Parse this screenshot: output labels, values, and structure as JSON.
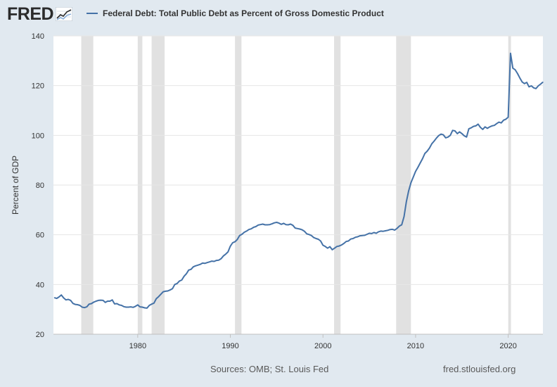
{
  "header": {
    "logo_text": "FRED",
    "logo_icon": "trend-line-chart-icon",
    "legend_label": "Federal Debt: Total Public Debt as Percent of Gross Domestic Product"
  },
  "footer": {
    "source": "Sources: OMB; St. Louis Fed",
    "site": "fred.stlouisfed.org"
  },
  "colors": {
    "line": "#4572a7",
    "recession": "#e1e1e1",
    "plot_bg": "#ffffff",
    "page_bg": "#e1e9f0",
    "grid": "#e6e6e6"
  },
  "chart_data": {
    "type": "line",
    "title": "",
    "xlabel": "",
    "ylabel": "Percent of GDP",
    "xlim": [
      1970.9,
      2023.75
    ],
    "ylim": [
      20,
      140
    ],
    "yticks": [
      20,
      40,
      60,
      80,
      100,
      120,
      140
    ],
    "xticks": [
      1980,
      1990,
      2000,
      2010,
      2020
    ],
    "grid": true,
    "legend_position": "top",
    "recessions": [
      [
        1973.9,
        1975.2
      ],
      [
        1980.0,
        1980.5
      ],
      [
        1981.5,
        1982.9
      ],
      [
        1990.5,
        1991.2
      ],
      [
        2001.2,
        2001.9
      ],
      [
        2007.9,
        2009.5
      ],
      [
        2020.0,
        2020.3
      ]
    ],
    "series": [
      {
        "name": "Federal Debt: Total Public Debt as Percent of Gross Domestic Product",
        "x": [
          1971.0,
          1971.25,
          1971.5,
          1971.75,
          1972.0,
          1972.25,
          1972.5,
          1972.75,
          1973.0,
          1973.25,
          1973.5,
          1973.75,
          1974.0,
          1974.25,
          1974.5,
          1974.75,
          1975.0,
          1975.25,
          1975.5,
          1975.75,
          1976.0,
          1976.25,
          1976.5,
          1976.75,
          1977.0,
          1977.25,
          1977.5,
          1977.75,
          1978.0,
          1978.25,
          1978.5,
          1978.75,
          1979.0,
          1979.25,
          1979.5,
          1979.75,
          1980.0,
          1980.25,
          1980.5,
          1980.75,
          1981.0,
          1981.25,
          1981.5,
          1981.75,
          1982.0,
          1982.25,
          1982.5,
          1982.75,
          1983.0,
          1983.25,
          1983.5,
          1983.75,
          1984.0,
          1984.25,
          1984.5,
          1984.75,
          1985.0,
          1985.25,
          1985.5,
          1985.75,
          1986.0,
          1986.25,
          1986.5,
          1986.75,
          1987.0,
          1987.25,
          1987.5,
          1987.75,
          1988.0,
          1988.25,
          1988.5,
          1988.75,
          1989.0,
          1989.25,
          1989.5,
          1989.75,
          1990.0,
          1990.25,
          1990.5,
          1990.75,
          1991.0,
          1991.25,
          1991.5,
          1991.75,
          1992.0,
          1992.25,
          1992.5,
          1992.75,
          1993.0,
          1993.25,
          1993.5,
          1993.75,
          1994.0,
          1994.25,
          1994.5,
          1994.75,
          1995.0,
          1995.25,
          1995.5,
          1995.75,
          1996.0,
          1996.25,
          1996.5,
          1996.75,
          1997.0,
          1997.25,
          1997.5,
          1997.75,
          1998.0,
          1998.25,
          1998.5,
          1998.75,
          1999.0,
          1999.25,
          1999.5,
          1999.75,
          2000.0,
          2000.25,
          2000.5,
          2000.75,
          2001.0,
          2001.25,
          2001.5,
          2001.75,
          2002.0,
          2002.25,
          2002.5,
          2002.75,
          2003.0,
          2003.25,
          2003.5,
          2003.75,
          2004.0,
          2004.25,
          2004.5,
          2004.75,
          2005.0,
          2005.25,
          2005.5,
          2005.75,
          2006.0,
          2006.25,
          2006.5,
          2006.75,
          2007.0,
          2007.25,
          2007.5,
          2007.75,
          2008.0,
          2008.25,
          2008.5,
          2008.75,
          2009.0,
          2009.25,
          2009.5,
          2009.75,
          2010.0,
          2010.25,
          2010.5,
          2010.75,
          2011.0,
          2011.25,
          2011.5,
          2011.75,
          2012.0,
          2012.25,
          2012.5,
          2012.75,
          2013.0,
          2013.25,
          2013.5,
          2013.75,
          2014.0,
          2014.25,
          2014.5,
          2014.75,
          2015.0,
          2015.25,
          2015.5,
          2015.75,
          2016.0,
          2016.25,
          2016.5,
          2016.75,
          2017.0,
          2017.25,
          2017.5,
          2017.75,
          2018.0,
          2018.25,
          2018.5,
          2018.75,
          2019.0,
          2019.25,
          2019.5,
          2019.75,
          2020.0,
          2020.25,
          2020.5,
          2020.75,
          2021.0,
          2021.25,
          2021.5,
          2021.75,
          2022.0,
          2022.25,
          2022.5,
          2022.75,
          2023.0,
          2023.25,
          2023.5,
          2023.75
        ],
        "values": [
          34.7,
          34.4,
          35.0,
          35.8,
          34.6,
          33.8,
          34.0,
          33.6,
          32.4,
          32.0,
          31.9,
          31.6,
          30.9,
          30.7,
          31.0,
          32.1,
          32.3,
          32.9,
          33.3,
          33.6,
          33.7,
          33.6,
          32.8,
          33.3,
          33.3,
          33.8,
          32.2,
          32.3,
          31.8,
          31.6,
          31.1,
          30.9,
          30.9,
          31.0,
          30.8,
          31.2,
          31.8,
          31.0,
          30.9,
          30.6,
          30.5,
          31.6,
          32.1,
          32.5,
          34.3,
          35.1,
          36.1,
          37.1,
          37.3,
          37.4,
          37.8,
          38.3,
          40.0,
          40.4,
          41.4,
          41.8,
          43.3,
          44.3,
          45.8,
          46.1,
          47.1,
          47.5,
          47.8,
          48.1,
          48.6,
          48.5,
          48.8,
          49.1,
          49.4,
          49.3,
          49.7,
          49.8,
          50.4,
          51.5,
          52.2,
          53.1,
          55.4,
          56.8,
          57.2,
          58.1,
          59.7,
          60.2,
          61.0,
          61.5,
          62.1,
          62.4,
          63.0,
          63.3,
          63.9,
          64.1,
          64.3,
          64.0,
          64.0,
          64.1,
          64.4,
          64.8,
          65.0,
          64.7,
          64.2,
          64.6,
          64.1,
          64.0,
          64.3,
          63.8,
          62.7,
          62.5,
          62.3,
          62.0,
          61.4,
          60.4,
          60.1,
          59.7,
          58.9,
          58.5,
          58.2,
          57.5,
          55.8,
          55.3,
          54.6,
          55.2,
          54.0,
          54.6,
          55.3,
          55.5,
          55.9,
          56.5,
          57.3,
          57.5,
          58.3,
          58.5,
          59.0,
          59.2,
          59.6,
          59.7,
          59.8,
          60.2,
          60.6,
          60.5,
          60.9,
          60.6,
          61.2,
          61.5,
          61.4,
          61.6,
          61.8,
          62.1,
          62.2,
          61.9,
          62.6,
          63.5,
          64.0,
          67.3,
          73.3,
          77.6,
          80.9,
          83.2,
          85.5,
          87.1,
          88.9,
          90.6,
          92.7,
          93.6,
          94.9,
          96.6,
          97.7,
          98.9,
          99.9,
          100.5,
          100.2,
          99.0,
          99.3,
          100.0,
          102.0,
          101.8,
          100.7,
          101.4,
          100.7,
          99.8,
          99.3,
          102.6,
          103.0,
          103.6,
          103.8,
          104.5,
          103.2,
          102.4,
          103.4,
          102.8,
          103.4,
          103.8,
          104.0,
          104.7,
          105.3,
          105.0,
          106.1,
          106.5,
          107.3,
          133.0,
          127.0,
          126.4,
          124.9,
          123.1,
          121.5,
          120.8,
          121.3,
          119.5,
          119.9,
          119.1,
          118.8,
          119.9,
          120.6,
          121.4
        ]
      }
    ]
  }
}
